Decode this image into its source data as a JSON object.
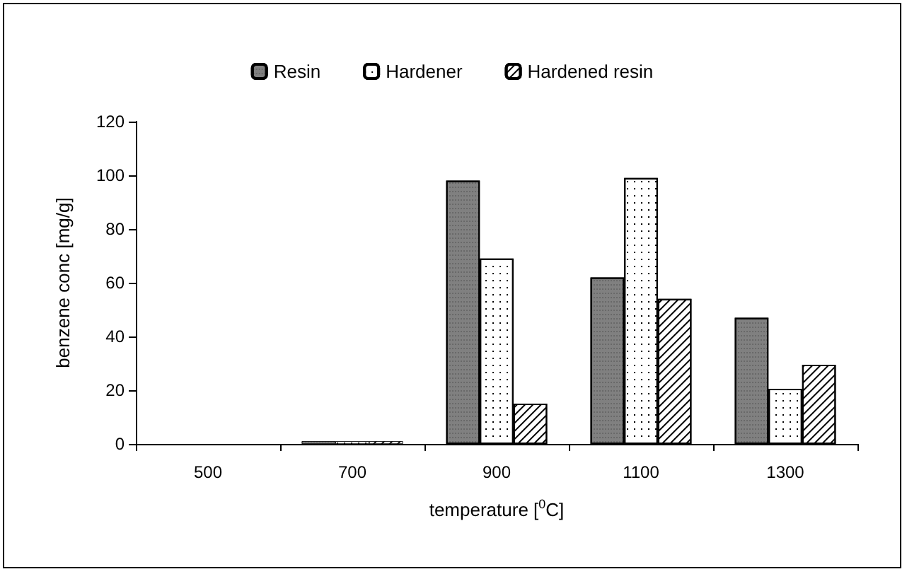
{
  "chart_data": {
    "type": "bar",
    "xlabel": "temperature [$^{0}$C]",
    "ylabel": "benzene conc [mg/g]",
    "categories": [
      "500",
      "700",
      "900",
      "1100",
      "1300"
    ],
    "series": [
      {
        "name": "Resin",
        "color": "#808080",
        "values": [
          0,
          1,
          98,
          62,
          47
        ]
      },
      {
        "name": "Hardener",
        "color": "#ffffff",
        "values": [
          0,
          1,
          69,
          99,
          20.5
        ]
      },
      {
        "name": "Hardened resin",
        "color": "#ffffff",
        "values": [
          0,
          1,
          15,
          54,
          29.5
        ]
      }
    ],
    "ylim": [
      0,
      120
    ],
    "yticks": [
      0,
      20,
      40,
      60,
      80,
      100,
      120
    ],
    "grid": false,
    "legend": "top"
  }
}
